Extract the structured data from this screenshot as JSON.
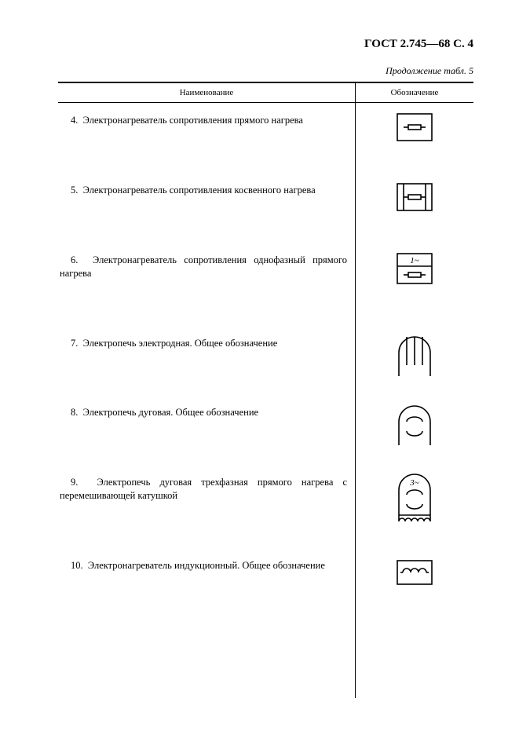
{
  "header": {
    "doc_id": "ГОСТ 2.745—68 С. 4",
    "continuation": "Продолжение табл. 5"
  },
  "table": {
    "columns": {
      "name": "Наименование",
      "symbol": "Обозначение"
    },
    "rows": [
      {
        "num": "4.",
        "text": "Электронагреватель сопротивления прямого нагрева",
        "symbol": "direct-resistance"
      },
      {
        "num": "5.",
        "text": "Электронагреватель сопротивления косвенного нагрева",
        "symbol": "indirect-resistance"
      },
      {
        "num": "6.",
        "text": "Электронагреватель сопротивления однофазный прямого нагрева",
        "symbol": "single-phase-direct"
      },
      {
        "num": "7.",
        "text": "Электропечь электродная. Общее обозначение",
        "symbol": "electrode-furnace"
      },
      {
        "num": "8.",
        "text": "Электропечь дуговая. Общее обозначение",
        "symbol": "arc-furnace"
      },
      {
        "num": "9.",
        "text": "Электропечь дуговая трехфазная прямого нагрева с перемешивающей катушкой",
        "symbol": "arc-3phase-coil"
      },
      {
        "num": "10.",
        "text": "Электронагреватель индукционный. Общее обозначение",
        "symbol": "induction-heater"
      }
    ]
  },
  "style": {
    "stroke": "#000000",
    "stroke_width": 1.6,
    "symbol_box_w": 48,
    "symbol_box_h": 40
  }
}
